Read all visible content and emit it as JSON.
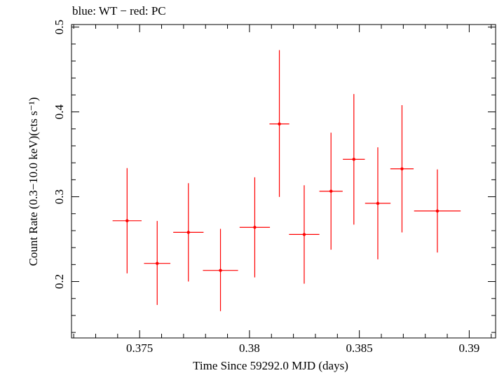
{
  "chart_data": {
    "type": "scatter",
    "title": "blue: WT − red: PC",
    "xlabel": "Time Since 59292.0 MJD (days)",
    "ylabel": "Count Rate (0.3−10.0 keV)(cts s⁻¹)",
    "xlim": [
      0.3719,
      0.3912
    ],
    "ylim": [
      0.1335,
      0.503
    ],
    "x_ticks": [
      0.375,
      0.38,
      0.385,
      0.39
    ],
    "x_tick_labels": [
      "0.375",
      "0.38",
      "0.385",
      "0.39"
    ],
    "y_ticks": [
      0.2,
      0.3,
      0.4,
      0.5
    ],
    "y_tick_labels": [
      "0.2",
      "0.3",
      "0.4",
      "0.5"
    ],
    "grid": false,
    "series": [
      {
        "color": "#ff0000",
        "points": [
          {
            "x": 0.37443,
            "xerr": [
              0.00066,
              0.00066
            ],
            "y": 0.2717,
            "yerr": [
              0.062,
              0.062
            ]
          },
          {
            "x": 0.3758,
            "xerr": [
              0.0006,
              0.0006
            ],
            "y": 0.2214,
            "yerr": [
              0.049,
              0.05
            ]
          },
          {
            "x": 0.37722,
            "xerr": [
              0.00069,
              0.00069
            ],
            "y": 0.258,
            "yerr": [
              0.058,
              0.058
            ]
          },
          {
            "x": 0.37868,
            "xerr": [
              0.0008,
              0.0008
            ],
            "y": 0.2131,
            "yerr": [
              0.048,
              0.049
            ]
          },
          {
            "x": 0.38024,
            "xerr": [
              0.00069,
              0.00069
            ],
            "y": 0.2639,
            "yerr": [
              0.059,
              0.059
            ]
          },
          {
            "x": 0.38136,
            "xerr": [
              0.00045,
              0.00045
            ],
            "y": 0.3858,
            "yerr": [
              0.086,
              0.087
            ]
          },
          {
            "x": 0.38249,
            "xerr": [
              0.00069,
              0.00069
            ],
            "y": 0.2555,
            "yerr": [
              0.058,
              0.058
            ]
          },
          {
            "x": 0.38371,
            "xerr": [
              0.00053,
              0.00053
            ],
            "y": 0.3065,
            "yerr": [
              0.069,
              0.069
            ]
          },
          {
            "x": 0.38475,
            "xerr": [
              0.0005,
              0.0005
            ],
            "y": 0.3441,
            "yerr": [
              0.077,
              0.077
            ]
          },
          {
            "x": 0.38584,
            "xerr": [
              0.00058,
              0.00058
            ],
            "y": 0.2922,
            "yerr": [
              0.066,
              0.066
            ]
          },
          {
            "x": 0.38694,
            "xerr": [
              0.00053,
              0.00053
            ],
            "y": 0.3329,
            "yerr": [
              0.075,
              0.075
            ]
          },
          {
            "x": 0.38855,
            "xerr": [
              0.00106,
              0.00106
            ],
            "y": 0.2832,
            "yerr": [
              0.049,
              0.049
            ]
          }
        ]
      }
    ]
  }
}
